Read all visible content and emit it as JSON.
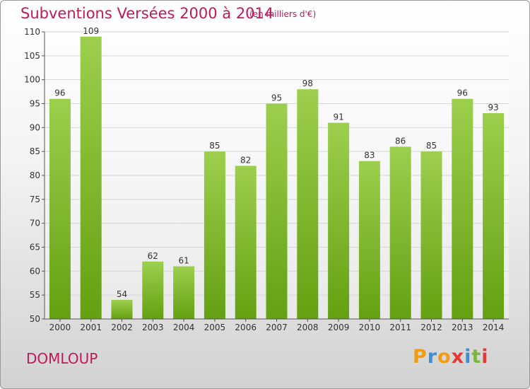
{
  "header": {
    "title": "Subventions Versées 2000 à 2014",
    "unit": "(en milliers d'€)"
  },
  "footer": {
    "commune": "DOMLOUP",
    "brand": "Proxiti",
    "brand_letters": [
      {
        "ch": "P",
        "color": "#f39c12"
      },
      {
        "ch": "r",
        "color": "#3b8ed8"
      },
      {
        "ch": "o",
        "color": "#f39c12"
      },
      {
        "ch": "x",
        "color": "#e53935"
      },
      {
        "ch": "i",
        "color": "#3b8ed8"
      },
      {
        "ch": "t",
        "color": "#7cb342"
      },
      {
        "ch": "i",
        "color": "#e53935"
      }
    ]
  },
  "colors": {
    "title": "#c2185b",
    "bar_top": "#9ccf4d",
    "bar_bottom": "#64a012",
    "grid": "#d6d6d6",
    "axis": "#555555"
  },
  "chart_data": {
    "type": "bar",
    "title": "Subventions Versées 2000 à 2014",
    "subtitle": "(en milliers d'€)",
    "xlabel": "",
    "ylabel": "",
    "categories": [
      "2000",
      "2001",
      "2002",
      "2003",
      "2004",
      "2005",
      "2006",
      "2007",
      "2008",
      "2009",
      "2010",
      "2011",
      "2012",
      "2013",
      "2014"
    ],
    "values": [
      96,
      109,
      54,
      62,
      61,
      85,
      82,
      95,
      98,
      91,
      83,
      86,
      85,
      96,
      93
    ],
    "ylim": [
      50,
      110
    ],
    "yticks": [
      50,
      55,
      60,
      65,
      70,
      75,
      80,
      85,
      90,
      95,
      100,
      105,
      110
    ],
    "grid": true,
    "legend": "none",
    "data_labels": true
  }
}
